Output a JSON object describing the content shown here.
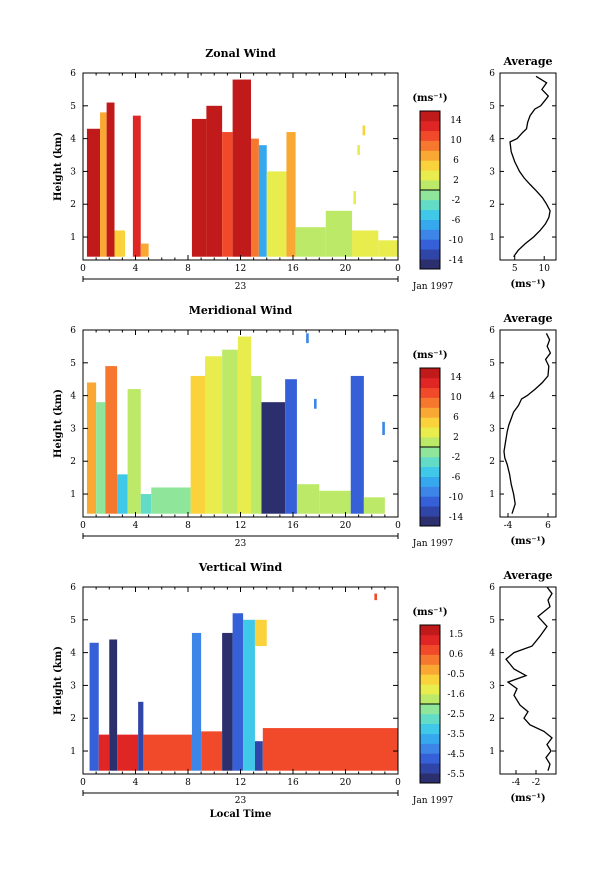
{
  "chart_data": [
    {
      "type": "heatmap",
      "title": "Zonal Wind",
      "ylabel": "Height (km)",
      "xlabel": "",
      "x_ticks": [
        "0",
        "4",
        "8",
        "12",
        "16",
        "20",
        "0"
      ],
      "xlim": [
        0,
        24
      ],
      "y_ticks": [
        "1",
        "2",
        "3",
        "4",
        "5",
        "6"
      ],
      "ylim": [
        0.3,
        6
      ],
      "date_label": "23",
      "month_label": "Jan 1997",
      "colorbar": {
        "unit": "(ms⁻¹)",
        "ticks": [
          "14",
          "10",
          "6",
          "2",
          "-2",
          "-6",
          "-10",
          "-14"
        ],
        "range": [
          -16,
          16
        ],
        "colors": [
          "#2b2f6e",
          "#2f45a8",
          "#3560d8",
          "#3d86e8",
          "#36a9ee",
          "#3fc8e8",
          "#62dcc6",
          "#8fe69a",
          "#bde968",
          "#e8ec4c",
          "#f9d23c",
          "#f9a833",
          "#f5782e",
          "#f04a2a",
          "#e02525",
          "#c01a1a"
        ]
      },
      "cells": [
        {
          "x": [
            0.3,
            1.3
          ],
          "y": [
            0.4,
            4.3
          ],
          "v": 15
        },
        {
          "x": [
            1.3,
            1.8
          ],
          "y": [
            0.4,
            4.8
          ],
          "v": 6
        },
        {
          "x": [
            1.8,
            2.4
          ],
          "y": [
            0.4,
            5.1
          ],
          "v": 14
        },
        {
          "x": [
            2.4,
            3.2
          ],
          "y": [
            0.4,
            1.2
          ],
          "v": 5
        },
        {
          "x": [
            3.8,
            4.4
          ],
          "y": [
            0.4,
            4.7
          ],
          "v": 13
        },
        {
          "x": [
            4.4,
            5.0
          ],
          "y": [
            0.4,
            0.8
          ],
          "v": 7
        },
        {
          "x": [
            8.3,
            9.4
          ],
          "y": [
            0.4,
            4.6
          ],
          "v": 14
        },
        {
          "x": [
            9.4,
            10.6
          ],
          "y": [
            0.4,
            5.0
          ],
          "v": 15
        },
        {
          "x": [
            10.6,
            11.4
          ],
          "y": [
            0.4,
            4.2
          ],
          "v": 10
        },
        {
          "x": [
            11.4,
            12.8
          ],
          "y": [
            0.4,
            5.8
          ],
          "v": 15
        },
        {
          "x": [
            12.8,
            13.4
          ],
          "y": [
            0.4,
            4.0
          ],
          "v": 8
        },
        {
          "x": [
            13.4,
            14.0
          ],
          "y": [
            0.4,
            3.8
          ],
          "v": -8
        },
        {
          "x": [
            14.0,
            15.5
          ],
          "y": [
            0.4,
            3.0
          ],
          "v": 3
        },
        {
          "x": [
            15.5,
            16.2
          ],
          "y": [
            0.4,
            4.2
          ],
          "v": 6
        },
        {
          "x": [
            16.2,
            18.5
          ],
          "y": [
            0.4,
            1.3
          ],
          "v": 1
        },
        {
          "x": [
            18.5,
            20.5
          ],
          "y": [
            0.4,
            1.8
          ],
          "v": 0
        },
        {
          "x": [
            20.5,
            22.5
          ],
          "y": [
            0.4,
            1.2
          ],
          "v": 3
        },
        {
          "x": [
            22.5,
            24.0
          ],
          "y": [
            0.4,
            0.9
          ],
          "v": 2
        },
        {
          "x": [
            20.6,
            20.8
          ],
          "y": [
            2.0,
            2.4
          ],
          "v": 2
        },
        {
          "x": [
            20.9,
            21.1
          ],
          "y": [
            3.5,
            3.8
          ],
          "v": 2
        },
        {
          "x": [
            21.3,
            21.5
          ],
          "y": [
            4.1,
            4.4
          ],
          "v": 4
        }
      ],
      "average_profile": {
        "title": "Average",
        "xlabel": "(ms⁻¹)",
        "x_ticks": [
          "5",
          "10"
        ],
        "xlim": [
          2.5,
          12
        ],
        "y_ticks": [
          "1",
          "2",
          "3",
          "4",
          "5",
          "6"
        ],
        "ylim": [
          0.3,
          6
        ],
        "x": [
          4.8,
          5.6,
          6.8,
          8.2,
          9.3,
          10.2,
          10.8,
          11.0,
          10.4,
          9.7,
          8.7,
          7.6,
          6.6,
          5.8,
          5.0,
          4.4,
          4.2,
          5.4,
          6.4,
          7.0,
          7.2,
          7.6,
          8.4,
          9.4,
          10.3,
          10.7,
          9.6,
          10.4,
          8.6
        ],
        "y": [
          0.4,
          0.6,
          0.8,
          1.0,
          1.2,
          1.4,
          1.6,
          1.8,
          2.0,
          2.2,
          2.4,
          2.6,
          2.8,
          3.0,
          3.3,
          3.6,
          3.9,
          4.0,
          4.2,
          4.3,
          4.5,
          4.7,
          4.9,
          5.0,
          5.2,
          5.3,
          5.5,
          5.7,
          5.9
        ]
      }
    },
    {
      "type": "heatmap",
      "title": "Meridional Wind",
      "ylabel": "Height (km)",
      "xlabel": "",
      "x_ticks": [
        "0",
        "4",
        "8",
        "12",
        "16",
        "20",
        "0"
      ],
      "xlim": [
        0,
        24
      ],
      "y_ticks": [
        "1",
        "2",
        "3",
        "4",
        "5",
        "6"
      ],
      "ylim": [
        0.3,
        6
      ],
      "date_label": "23",
      "month_label": "Jan 1997",
      "colorbar": {
        "unit": "(ms⁻¹)",
        "ticks": [
          "14",
          "10",
          "6",
          "2",
          "-2",
          "-6",
          "-10",
          "-14"
        ],
        "range": [
          -16,
          16
        ],
        "colors": [
          "#2b2f6e",
          "#2f45a8",
          "#3560d8",
          "#3d86e8",
          "#36a9ee",
          "#3fc8e8",
          "#62dcc6",
          "#8fe69a",
          "#bde968",
          "#e8ec4c",
          "#f9d23c",
          "#f9a833",
          "#f5782e",
          "#f04a2a",
          "#e02525",
          "#c01a1a"
        ]
      },
      "cells": [
        {
          "x": [
            0.3,
            1.0
          ],
          "y": [
            0.4,
            4.4
          ],
          "v": 7
        },
        {
          "x": [
            1.0,
            1.7
          ],
          "y": [
            0.4,
            3.8
          ],
          "v": -2
        },
        {
          "x": [
            1.7,
            2.6
          ],
          "y": [
            0.4,
            4.9
          ],
          "v": 9
        },
        {
          "x": [
            2.6,
            3.4
          ],
          "y": [
            0.4,
            1.6
          ],
          "v": -6
        },
        {
          "x": [
            3.4,
            4.4
          ],
          "y": [
            0.4,
            4.2
          ],
          "v": 1
        },
        {
          "x": [
            4.4,
            5.2
          ],
          "y": [
            0.4,
            1.0
          ],
          "v": -4
        },
        {
          "x": [
            5.2,
            8.2
          ],
          "y": [
            0.4,
            1.2
          ],
          "v": -2
        },
        {
          "x": [
            8.2,
            9.3
          ],
          "y": [
            0.4,
            4.6
          ],
          "v": 5
        },
        {
          "x": [
            9.3,
            10.6
          ],
          "y": [
            0.4,
            5.2
          ],
          "v": 2
        },
        {
          "x": [
            10.6,
            11.8
          ],
          "y": [
            0.4,
            5.4
          ],
          "v": 0
        },
        {
          "x": [
            11.8,
            12.8
          ],
          "y": [
            0.4,
            5.8
          ],
          "v": 2
        },
        {
          "x": [
            12.8,
            13.6
          ],
          "y": [
            0.4,
            4.6
          ],
          "v": 0
        },
        {
          "x": [
            13.6,
            15.4
          ],
          "y": [
            0.4,
            3.8
          ],
          "v": -15
        },
        {
          "x": [
            15.4,
            16.3
          ],
          "y": [
            0.4,
            4.5
          ],
          "v": -11
        },
        {
          "x": [
            16.3,
            18.0
          ],
          "y": [
            0.4,
            1.3
          ],
          "v": 1
        },
        {
          "x": [
            18.0,
            20.4
          ],
          "y": [
            0.4,
            1.1
          ],
          "v": 0
        },
        {
          "x": [
            20.4,
            21.4
          ],
          "y": [
            0.4,
            4.6
          ],
          "v": -12
        },
        {
          "x": [
            21.4,
            23.0
          ],
          "y": [
            0.4,
            0.9
          ],
          "v": 1
        },
        {
          "x": [
            17.6,
            17.8
          ],
          "y": [
            3.6,
            3.9
          ],
          "v": -9
        },
        {
          "x": [
            22.8,
            23.0
          ],
          "y": [
            2.8,
            3.2
          ],
          "v": -9
        },
        {
          "x": [
            17.0,
            17.2
          ],
          "y": [
            5.6,
            5.9
          ],
          "v": -10
        }
      ],
      "average_profile": {
        "title": "Average",
        "xlabel": "(ms⁻¹)",
        "x_ticks": [
          "-4",
          "6"
        ],
        "xlim": [
          -6,
          8
        ],
        "y_ticks": [
          "1",
          "2",
          "3",
          "4",
          "5",
          "6"
        ],
        "ylim": [
          0.3,
          6
        ],
        "x": [
          -3.0,
          -2.2,
          -2.6,
          -3.2,
          -3.6,
          -4.2,
          -4.8,
          -5.0,
          -4.6,
          -4.2,
          -3.8,
          -3.2,
          -2.6,
          -1.4,
          -0.6,
          0.8,
          2.8,
          4.6,
          6.0,
          6.2,
          5.4,
          6.6,
          5.8,
          6.4,
          5.6
        ],
        "y": [
          0.4,
          0.7,
          1.0,
          1.3,
          1.6,
          1.9,
          2.1,
          2.3,
          2.6,
          2.9,
          3.1,
          3.3,
          3.5,
          3.7,
          3.9,
          4.0,
          4.2,
          4.4,
          4.6,
          4.9,
          5.1,
          5.3,
          5.5,
          5.7,
          5.9
        ]
      }
    },
    {
      "type": "heatmap",
      "title": "Vertical Wind",
      "ylabel": "Height (km)",
      "xlabel": "Local Time",
      "x_ticks": [
        "0",
        "4",
        "8",
        "12",
        "16",
        "20",
        "0"
      ],
      "xlim": [
        0,
        24
      ],
      "y_ticks": [
        "1",
        "2",
        "3",
        "4",
        "5",
        "6"
      ],
      "ylim": [
        0.3,
        6
      ],
      "date_label": "23",
      "month_label": "Jan 1997",
      "colorbar": {
        "unit": "(ms⁻¹)",
        "ticks": [
          "1.5",
          "0.6",
          "-0.5",
          "-1.6",
          "-2.5",
          "-3.5",
          "-4.5",
          "-5.5"
        ],
        "range": [
          -6,
          2
        ],
        "colors": [
          "#2b2f6e",
          "#2f45a8",
          "#3560d8",
          "#3d86e8",
          "#36a9ee",
          "#3fc8e8",
          "#62dcc6",
          "#8fe69a",
          "#bde968",
          "#e8ec4c",
          "#f9d23c",
          "#f9a833",
          "#f5782e",
          "#f04a2a",
          "#e02525",
          "#c01a1a"
        ]
      },
      "cells": [
        {
          "x": [
            0.5,
            1.2
          ],
          "y": [
            0.4,
            4.3
          ],
          "v": -4.6
        },
        {
          "x": [
            1.2,
            2.0
          ],
          "y": [
            0.4,
            1.5
          ],
          "v": 1.1
        },
        {
          "x": [
            2.0,
            2.6
          ],
          "y": [
            0.4,
            4.4
          ],
          "v": -5.9
        },
        {
          "x": [
            2.6,
            4.2
          ],
          "y": [
            0.4,
            1.5
          ],
          "v": 1.0
        },
        {
          "x": [
            4.2,
            4.6
          ],
          "y": [
            0.4,
            2.5
          ],
          "v": -5.3
        },
        {
          "x": [
            4.6,
            8.3
          ],
          "y": [
            0.4,
            1.5
          ],
          "v": 0.8
        },
        {
          "x": [
            8.3,
            9.0
          ],
          "y": [
            0.4,
            4.6
          ],
          "v": -4.3
        },
        {
          "x": [
            9.0,
            10.6
          ],
          "y": [
            0.4,
            1.6
          ],
          "v": 0.9
        },
        {
          "x": [
            10.6,
            11.4
          ],
          "y": [
            0.4,
            4.6
          ],
          "v": -5.7
        },
        {
          "x": [
            11.4,
            12.2
          ],
          "y": [
            0.4,
            5.2
          ],
          "v": -4.8
        },
        {
          "x": [
            12.2,
            13.1
          ],
          "y": [
            0.4,
            5.0
          ],
          "v": -3.3
        },
        {
          "x": [
            13.1,
            14.0
          ],
          "y": [
            4.2,
            5.0
          ],
          "v": -0.6
        },
        {
          "x": [
            13.1,
            13.7
          ],
          "y": [
            0.4,
            1.3
          ],
          "v": -5.4
        },
        {
          "x": [
            13.7,
            24.0
          ],
          "y": [
            0.4,
            1.7
          ],
          "v": 0.8
        },
        {
          "x": [
            22.2,
            22.4
          ],
          "y": [
            5.6,
            5.8
          ],
          "v": 0.9
        }
      ],
      "average_profile": {
        "title": "Average",
        "xlabel": "(ms⁻¹)",
        "x_ticks": [
          "-4",
          "-2"
        ],
        "xlim": [
          -5.6,
          0
        ],
        "y_ticks": [
          "1",
          "2",
          "3",
          "4",
          "5",
          "6"
        ],
        "ylim": [
          0.3,
          6
        ],
        "x": [
          -0.8,
          -0.6,
          -1.0,
          -0.5,
          -0.9,
          -0.4,
          -1.2,
          -2.6,
          -3.2,
          -2.8,
          -3.6,
          -4.2,
          -3.9,
          -4.8,
          -3.0,
          -4.2,
          -5.0,
          -4.2,
          -2.4,
          -1.6,
          -0.9,
          -1.8,
          -0.6,
          -0.8,
          -0.4,
          -0.9
        ],
        "y": [
          0.4,
          0.6,
          0.8,
          1.0,
          1.2,
          1.4,
          1.6,
          1.8,
          2.0,
          2.2,
          2.4,
          2.7,
          2.9,
          3.1,
          3.3,
          3.5,
          3.8,
          4.0,
          4.2,
          4.5,
          4.8,
          5.1,
          5.4,
          5.6,
          5.8,
          6.0
        ]
      }
    }
  ]
}
